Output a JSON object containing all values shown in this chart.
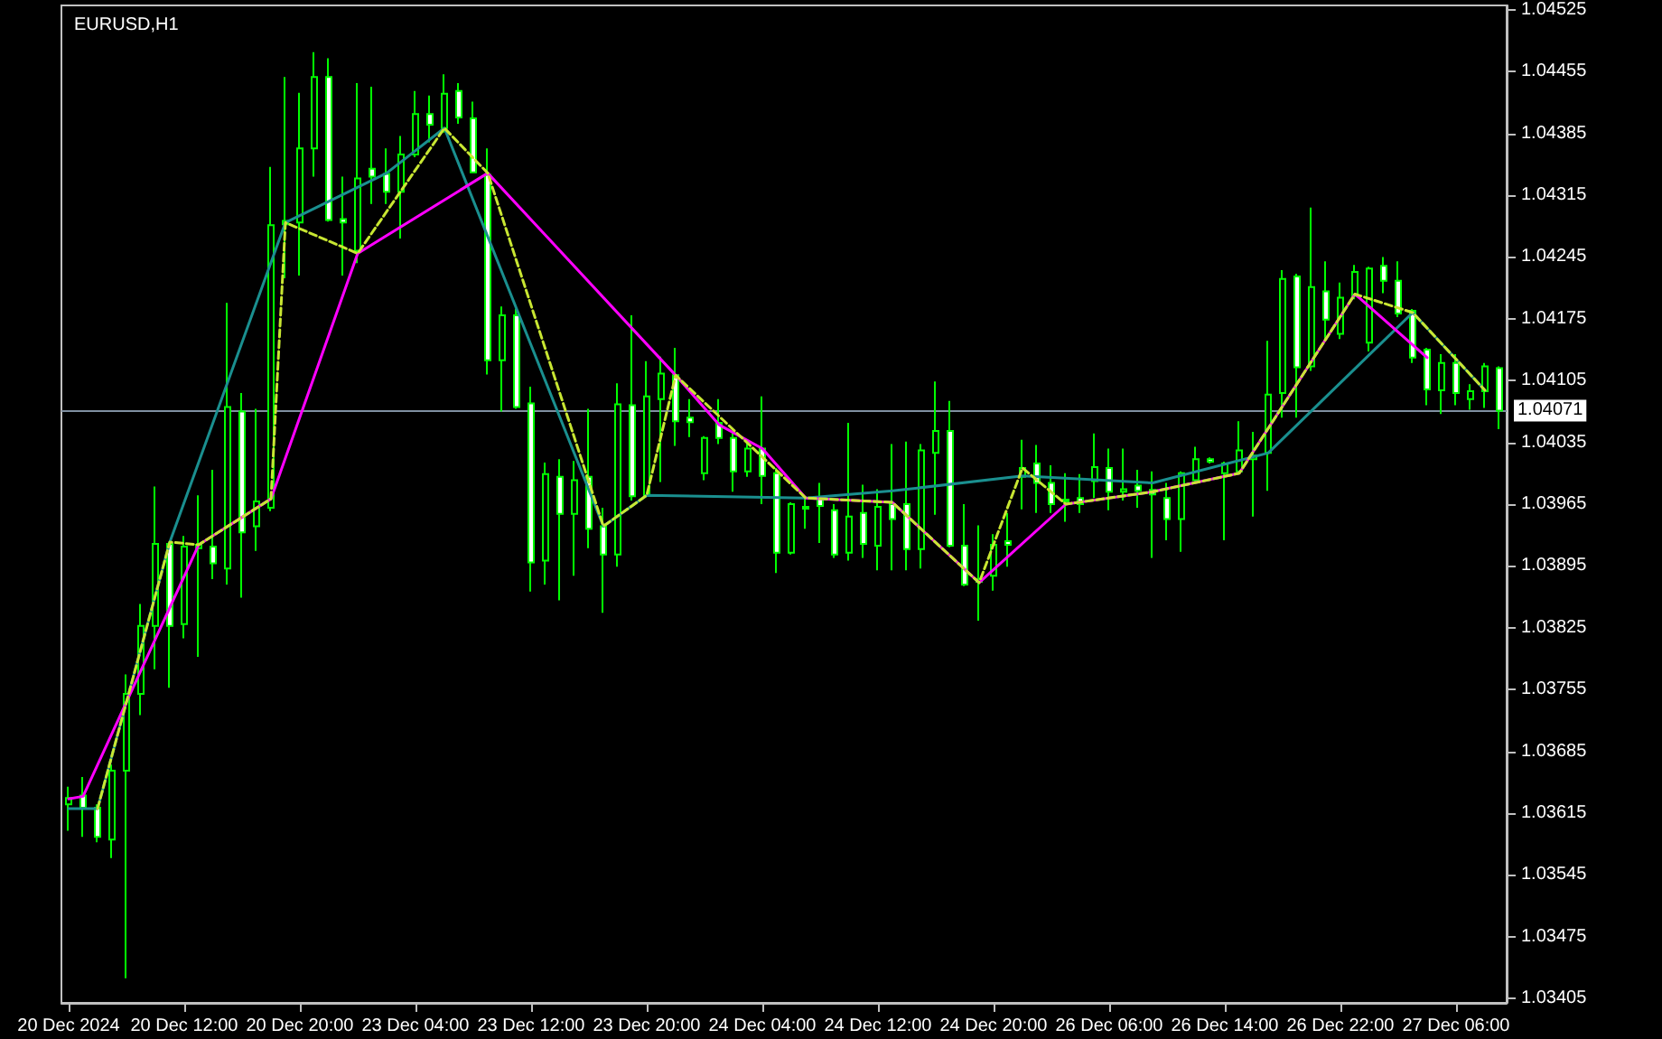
{
  "chart_data": {
    "type": "candlestick",
    "title": "EURUSD,H1",
    "categories": [
      "20 Dec 2024",
      null,
      null,
      null,
      null,
      null,
      null,
      null,
      "20 Dec 12:00",
      null,
      null,
      null,
      null,
      null,
      null,
      null,
      "20 Dec 20:00",
      null,
      null,
      null,
      null,
      null,
      null,
      null,
      "23 Dec 04:00",
      null,
      null,
      null,
      null,
      null,
      null,
      null,
      "23 Dec 12:00",
      null,
      null,
      null,
      null,
      null,
      null,
      null,
      "23 Dec 20:00",
      null,
      null,
      null,
      null,
      null,
      null,
      null,
      "24 Dec 04:00",
      null,
      null,
      null,
      null,
      null,
      null,
      null,
      "24 Dec 12:00",
      null,
      null,
      null,
      null,
      null,
      null,
      null,
      "24 Dec 20:00",
      null,
      null,
      null,
      null,
      null,
      null,
      null,
      "26 Dec 06:00",
      null,
      null,
      null,
      null,
      null,
      null,
      null,
      "26 Dec 14:00",
      null,
      null,
      null,
      null,
      null,
      null,
      null,
      "26 Dec 22:00",
      null,
      null,
      null,
      null,
      null,
      null,
      null,
      "27 Dec 06:00",
      null,
      null,
      null
    ],
    "ylim": [
      1.034,
      1.0453
    ],
    "yticks": [
      1.03405,
      1.03475,
      1.03545,
      1.03615,
      1.03685,
      1.03755,
      1.03825,
      1.03895,
      1.03965,
      1.04035,
      1.04105,
      1.04175,
      1.04245,
      1.04315,
      1.04385,
      1.04455,
      1.04525
    ],
    "grid": false,
    "ref_lines": [
      {
        "axis": "y",
        "value": 1.04071,
        "label": "1.04071",
        "color": "#7f8fa0"
      }
    ],
    "series": [
      {
        "color": "#00ff00",
        "ohlc": [
          [
            1.03625,
            1.03645,
            1.03595,
            1.03632
          ],
          [
            1.03635,
            1.03656,
            1.03588,
            1.03621
          ],
          [
            1.03621,
            1.03625,
            1.03582,
            1.03588
          ],
          [
            1.03585,
            1.0367,
            1.03564,
            1.03663
          ],
          [
            1.03663,
            1.03772,
            1.03428,
            1.0375
          ],
          [
            1.0375,
            1.03852,
            1.03726,
            1.03827
          ],
          [
            1.03827,
            1.03985,
            1.03778,
            1.0392
          ],
          [
            1.0392,
            1.03922,
            1.03757,
            1.03827
          ],
          [
            1.03829,
            1.03929,
            1.03813,
            1.03917
          ],
          [
            1.03915,
            1.03975,
            1.03792,
            1.03919
          ],
          [
            1.03917,
            1.04004,
            1.0388,
            1.03898
          ],
          [
            1.03892,
            1.04193,
            1.03874,
            1.04075
          ],
          [
            1.0407,
            1.04091,
            1.03859,
            1.03933
          ],
          [
            1.0394,
            1.04073,
            1.03912,
            1.03968
          ],
          [
            1.03961,
            1.04347,
            1.03957,
            1.04281
          ],
          [
            1.04282,
            1.04449,
            1.04221,
            1.04286
          ],
          [
            1.04284,
            1.04431,
            1.04224,
            1.04368
          ],
          [
            1.04368,
            1.04477,
            1.04336,
            1.04449
          ],
          [
            1.04449,
            1.0447,
            1.04285,
            1.04287
          ],
          [
            1.04288,
            1.04336,
            1.04224,
            1.04284
          ],
          [
            1.04252,
            1.04442,
            1.04238,
            1.04334
          ],
          [
            1.04345,
            1.04438,
            1.04305,
            1.04336
          ],
          [
            1.04339,
            1.04368,
            1.04305,
            1.04319
          ],
          [
            1.04319,
            1.04382,
            1.04266,
            1.04361
          ],
          [
            1.04361,
            1.04433,
            1.04358,
            1.04407
          ],
          [
            1.04407,
            1.04428,
            1.04375,
            1.04395
          ],
          [
            1.04391,
            1.04452,
            1.04386,
            1.0443
          ],
          [
            1.04433,
            1.04442,
            1.04396,
            1.04403
          ],
          [
            1.04402,
            1.04421,
            1.0434,
            1.04341
          ],
          [
            1.04338,
            1.04368,
            1.04112,
            1.04128
          ],
          [
            1.04128,
            1.04189,
            1.0407,
            1.04179
          ],
          [
            1.04179,
            1.04186,
            1.04073,
            1.04075
          ],
          [
            1.04079,
            1.04098,
            1.03866,
            1.03899
          ],
          [
            1.03901,
            1.04012,
            1.03874,
            1.03999
          ],
          [
            1.03996,
            1.04016,
            1.03856,
            1.03954
          ],
          [
            1.03954,
            1.04014,
            1.03884,
            1.03992
          ],
          [
            1.03996,
            1.04073,
            1.03915,
            1.03937
          ],
          [
            1.0394,
            1.03961,
            1.03842,
            1.03908
          ],
          [
            1.03908,
            1.04102,
            1.03894,
            1.04078
          ],
          [
            1.04077,
            1.04179,
            1.03969,
            1.03974
          ],
          [
            1.03975,
            1.04127,
            1.03973,
            1.04087
          ],
          [
            1.04084,
            1.04132,
            1.0399,
            1.04113
          ],
          [
            1.04111,
            1.04142,
            1.04031,
            1.04059
          ],
          [
            1.04063,
            1.04084,
            1.04041,
            1.04058
          ],
          [
            1.04,
            1.04042,
            1.03992,
            1.0404
          ],
          [
            1.04057,
            1.04084,
            1.04033,
            1.0404
          ],
          [
            1.0404,
            1.04047,
            1.03979,
            1.04002
          ],
          [
            1.04002,
            1.04036,
            1.03996,
            1.04028
          ],
          [
            1.04028,
            1.04087,
            1.03965,
            1.03997
          ],
          [
            1.04,
            1.04006,
            1.03887,
            1.0391
          ],
          [
            1.0391,
            1.03967,
            1.03908,
            1.03965
          ],
          [
            1.0396,
            1.03973,
            1.03937,
            1.03962
          ],
          [
            1.03972,
            1.03989,
            1.03921,
            1.03963
          ],
          [
            1.03958,
            1.03965,
            1.03904,
            1.03908
          ],
          [
            1.0391,
            1.04057,
            1.03901,
            1.03951
          ],
          [
            1.03955,
            1.03987,
            1.03904,
            1.0392
          ],
          [
            1.03918,
            1.03982,
            1.0389,
            1.03962
          ],
          [
            1.03965,
            1.04033,
            1.0389,
            1.03948
          ],
          [
            1.03965,
            1.04036,
            1.0389,
            1.03914
          ],
          [
            1.03914,
            1.04033,
            1.03892,
            1.04026
          ],
          [
            1.04023,
            1.04104,
            1.03953,
            1.04048
          ],
          [
            1.04048,
            1.04082,
            1.03916,
            1.03918
          ],
          [
            1.03918,
            1.03965,
            1.03872,
            1.03874
          ],
          [
            1.03877,
            1.03941,
            1.03833,
            1.0388
          ],
          [
            1.03884,
            1.03931,
            1.03867,
            1.03919
          ],
          [
            1.03923,
            1.03955,
            1.03894,
            1.03919
          ],
          [
            1.03996,
            1.04038,
            1.03959,
            1.04006
          ],
          [
            1.04011,
            1.04032,
            1.03955,
            1.03989
          ],
          [
            1.03989,
            1.04009,
            1.03955,
            1.03965
          ],
          [
            1.0397,
            1.04,
            1.03945,
            1.03968
          ],
          [
            1.03972,
            1.03999,
            1.03955,
            1.03965
          ],
          [
            1.03991,
            1.04045,
            1.03972,
            1.04007
          ],
          [
            1.04006,
            1.04028,
            1.03958,
            1.03979
          ],
          [
            1.03979,
            1.04028,
            1.03969,
            1.03982
          ],
          [
            1.03986,
            1.04004,
            1.03961,
            1.0398
          ],
          [
            1.03981,
            1.04002,
            1.03904,
            1.03976
          ],
          [
            1.03972,
            1.03989,
            1.03924,
            1.03948
          ],
          [
            1.03948,
            1.04002,
            1.03911,
            1.04
          ],
          [
            1.03992,
            1.0403,
            1.0399,
            1.04016
          ],
          [
            1.04016,
            1.04018,
            1.04011,
            1.04013
          ],
          [
            1.04,
            1.04013,
            1.03924,
            1.04011
          ],
          [
            1.04002,
            1.04059,
            1.03999,
            1.04026
          ],
          [
            1.04016,
            1.04047,
            1.03951,
            1.0402
          ],
          [
            1.04023,
            1.0415,
            1.0398,
            1.04089
          ],
          [
            1.04091,
            1.0423,
            1.04063,
            1.0422
          ],
          [
            1.04223,
            1.04226,
            1.04063,
            1.0412
          ],
          [
            1.04121,
            1.04301,
            1.04116,
            1.04211
          ],
          [
            1.04206,
            1.0424,
            1.0415,
            1.04174
          ],
          [
            1.04158,
            1.04216,
            1.04152,
            1.04199
          ],
          [
            1.04201,
            1.04236,
            1.04197,
            1.04228
          ],
          [
            1.04148,
            1.04234,
            1.04138,
            1.04232
          ],
          [
            1.04235,
            1.04245,
            1.04204,
            1.04218
          ],
          [
            1.04218,
            1.0424,
            1.04177,
            1.04181
          ],
          [
            1.04184,
            1.04186,
            1.04125,
            1.04131
          ],
          [
            1.0414,
            1.04142,
            1.04077,
            1.04095
          ],
          [
            1.04094,
            1.04135,
            1.04067,
            1.04125
          ],
          [
            1.04125,
            1.04135,
            1.04077,
            1.04091
          ],
          [
            1.04084,
            1.04101,
            1.04072,
            1.04093
          ],
          [
            1.04093,
            1.04125,
            1.04074,
            1.04121
          ],
          [
            1.04119,
            1.04121,
            1.0405,
            1.04071
          ]
        ]
      },
      {
        "type": "line",
        "color": "#c8e632",
        "line_style": "dashed",
        "values": [
          null,
          null,
          1.0362,
          null,
          null,
          null,
          null,
          1.03922,
          null,
          1.03919,
          null,
          null,
          null,
          null,
          1.03971,
          1.04284,
          null,
          null,
          null,
          null,
          1.04249,
          null,
          null,
          null,
          null,
          null,
          1.04391,
          null,
          null,
          1.0434,
          null,
          null,
          null,
          null,
          null,
          null,
          null,
          1.0394,
          null,
          null,
          1.03975,
          null,
          1.04111,
          null,
          null,
          null,
          null,
          null,
          null,
          null,
          null,
          1.03972,
          null,
          null,
          null,
          null,
          null,
          1.03967,
          null,
          null,
          null,
          null,
          null,
          1.03876,
          null,
          null,
          1.04006,
          null,
          null,
          1.03965,
          null,
          null,
          null,
          null,
          null,
          1.03979,
          null,
          null,
          null,
          null,
          null,
          1.04,
          null,
          null,
          null,
          null,
          null,
          null,
          null,
          1.04203,
          null,
          null,
          null,
          1.04182,
          null,
          null,
          null,
          null,
          1.04094,
          null
        ]
      },
      {
        "type": "line",
        "color": "#1a8f8f",
        "line_style": "solid",
        "values": [
          1.0362,
          null,
          1.0362,
          null,
          null,
          null,
          null,
          1.03922,
          null,
          null,
          null,
          null,
          null,
          null,
          null,
          1.04284,
          null,
          null,
          null,
          null,
          null,
          null,
          1.0434,
          null,
          null,
          null,
          1.04391,
          null,
          null,
          null,
          null,
          null,
          null,
          null,
          null,
          null,
          null,
          1.0394,
          null,
          null,
          1.03975,
          null,
          null,
          null,
          null,
          null,
          null,
          null,
          null,
          null,
          null,
          1.03972,
          null,
          null,
          null,
          null,
          null,
          1.0398,
          null,
          null,
          null,
          null,
          null,
          null,
          null,
          null,
          1.03997,
          null,
          null,
          null,
          null,
          null,
          null,
          null,
          null,
          1.03989,
          null,
          null,
          null,
          null,
          null,
          null,
          null,
          1.04023,
          null,
          null,
          null,
          null,
          null,
          null,
          null,
          null,
          null,
          1.04182,
          null,
          null,
          null,
          null,
          1.04094,
          null
        ]
      },
      {
        "type": "line",
        "color": "#ff00ff",
        "line_style": "solid",
        "values": [
          1.03631,
          1.03634,
          null,
          null,
          null,
          null,
          null,
          null,
          null,
          1.03919,
          null,
          null,
          null,
          null,
          1.03971,
          null,
          null,
          null,
          null,
          null,
          1.04249,
          null,
          null,
          null,
          null,
          null,
          null,
          null,
          null,
          1.0434,
          null,
          null,
          null,
          null,
          null,
          null,
          null,
          null,
          null,
          null,
          null,
          null,
          1.04111,
          null,
          null,
          1.04055,
          null,
          null,
          1.04028,
          null,
          null,
          1.03972,
          null,
          null,
          null,
          null,
          null,
          1.03967,
          null,
          null,
          null,
          null,
          null,
          1.03876,
          null,
          null,
          null,
          null,
          null,
          1.03965,
          null,
          null,
          null,
          null,
          null,
          1.03979,
          null,
          null,
          null,
          null,
          null,
          1.04,
          null,
          null,
          null,
          null,
          null,
          null,
          null,
          1.04203,
          null,
          null,
          null,
          null,
          1.04131,
          null,
          null,
          null,
          null,
          null
        ]
      }
    ]
  }
}
